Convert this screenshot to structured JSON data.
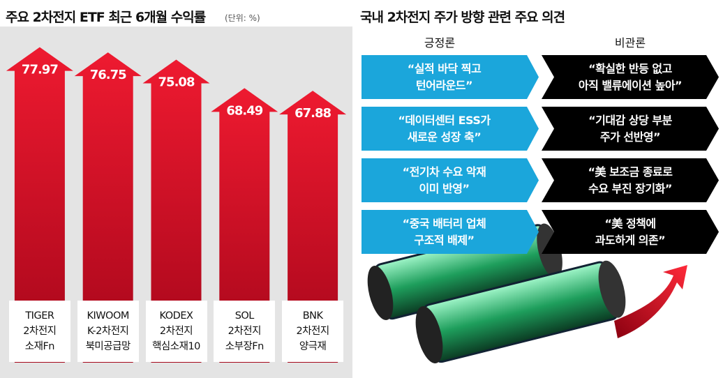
{
  "chart_data": {
    "type": "bar",
    "title": "주요 2차전지 ETF 최근 6개월 수익률",
    "subtitle": "(단위: %)",
    "categories": [
      "TIGER\n2차전지\n소재Fn",
      "KIWOOM\nK-2차전지\n북미공급망",
      "KODEX\n2차전지\n핵심소재10",
      "SOL\n2차전지\n소부장Fn",
      "BNK\n2차전지\n양극재"
    ],
    "values": [
      77.97,
      76.75,
      75.08,
      68.49,
      67.88
    ],
    "color": "#d8102a",
    "ylim": [
      5,
      80
    ]
  },
  "opinions": {
    "title": "국내 2차전지 주가 방향 관련 주요 의견",
    "positive_label": "긍정론",
    "negative_label": "비관론",
    "rows": [
      {
        "positive": "“실적 바닥 찍고\n턴어라운드”",
        "negative": "“확실한 반등 없고\n아직 밸류에이션 높아”"
      },
      {
        "positive": "“데이터센터 ESS가\n새로운 성장 축”",
        "negative": "“기대감 상당 부분\n주가 선반영”"
      },
      {
        "positive": "“전기차 수요 악재\n이미 반영”",
        "negative": "“美 보조금 종료로\n수요 부진 장기화”"
      },
      {
        "positive": "“중국 배터리 업체\n구조적 배제”",
        "negative": "“美 정책에\n과도하게 의존”"
      }
    ]
  }
}
